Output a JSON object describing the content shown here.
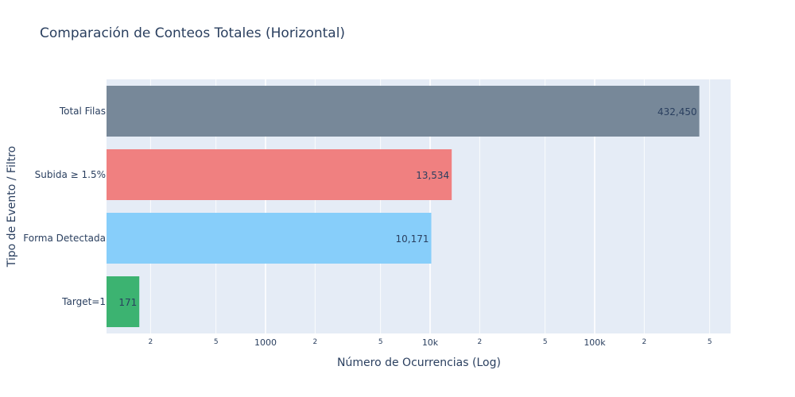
{
  "chart_data": {
    "type": "bar",
    "orientation": "horizontal",
    "title": "Comparación de Conteos Totales (Horizontal)",
    "xlabel": "Número de Ocurrencias (Log)",
    "ylabel": "Tipo de Evento / Filtro",
    "x_scale": "log",
    "x_major_ticks": [
      {
        "value": 1000,
        "label": "1000"
      },
      {
        "value": 10000,
        "label": "10k"
      },
      {
        "value": 100000,
        "label": "100k"
      }
    ],
    "x_minor_ticks": [
      {
        "value": 200,
        "label": "2"
      },
      {
        "value": 500,
        "label": "5"
      },
      {
        "value": 2000,
        "label": "2"
      },
      {
        "value": 5000,
        "label": "5"
      },
      {
        "value": 20000,
        "label": "2"
      },
      {
        "value": 50000,
        "label": "5"
      },
      {
        "value": 200000,
        "label": "2"
      },
      {
        "value": 500000,
        "label": "5"
      }
    ],
    "grid": true,
    "categories": [
      "Total Filas",
      "Subida ≥ 1.5%",
      "Forma Detectada",
      "Target=1"
    ],
    "values": [
      432450,
      13534,
      10171,
      171
    ],
    "value_labels": [
      "432,450",
      "13,534",
      "10,171",
      "171"
    ],
    "colors": [
      "#778899",
      "#f08080",
      "#87cefa",
      "#3cb371"
    ],
    "plot_bgcolor": "#e5ecf6"
  }
}
